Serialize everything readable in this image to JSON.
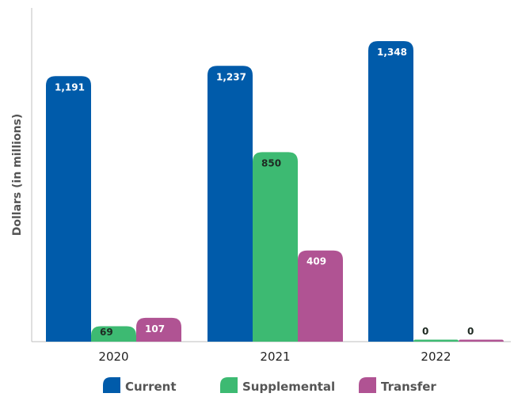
{
  "chart_data": {
    "type": "bar",
    "title": "",
    "xlabel": "",
    "ylabel": "Dollars (in millions)",
    "categories": [
      "2020",
      "2021",
      "2022"
    ],
    "ylim": [
      0,
      1400
    ],
    "grid": false,
    "legend_position": "bottom",
    "series": [
      {
        "name": "Current",
        "values": [
          1191,
          1237,
          1348
        ],
        "labels": [
          "1,191",
          "1,237",
          "1,348"
        ],
        "color": "#005baa",
        "label_color": "#ffffff"
      },
      {
        "name": "Supplemental",
        "values": [
          69,
          850,
          0
        ],
        "labels": [
          "69",
          "850",
          "0"
        ],
        "color": "#3dba72",
        "label_color": "#1e2a22"
      },
      {
        "name": "Transfer",
        "values": [
          107,
          409,
          0
        ],
        "labels": [
          "107",
          "409",
          "0"
        ],
        "color": "#b05393",
        "label_color": "#ffffff"
      }
    ]
  }
}
